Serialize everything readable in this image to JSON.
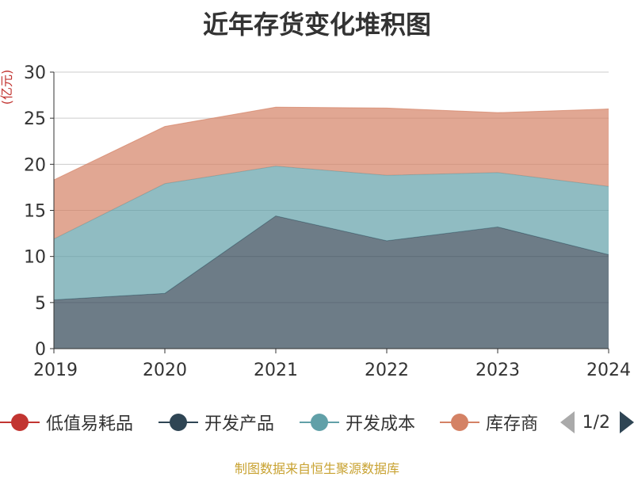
{
  "chart_data": {
    "type": "area",
    "stacked": true,
    "title": "近年存货变化堆积图",
    "ylabel": "(亿元)",
    "ylim": [
      0,
      30
    ],
    "yticks": [
      0,
      5,
      10,
      15,
      20,
      25,
      30
    ],
    "x": [
      "2019",
      "2020",
      "2021",
      "2022",
      "2023",
      "2024"
    ],
    "grid": true,
    "legend_position": "bottom",
    "series": [
      {
        "name": "低值易耗品",
        "color": "#c23531",
        "values": [
          0,
          0,
          0,
          0,
          0,
          0
        ]
      },
      {
        "name": "开发产品",
        "color": "#2f4554",
        "values": [
          5.3,
          6.0,
          14.4,
          11.7,
          13.2,
          10.2
        ]
      },
      {
        "name": "开发成本",
        "color": "#61a0a8",
        "values": [
          6.6,
          11.9,
          5.4,
          7.1,
          5.9,
          7.4
        ]
      },
      {
        "name": "库存商品",
        "color": "#d48265",
        "values": [
          6.4,
          6.2,
          6.4,
          7.3,
          6.5,
          8.4
        ]
      }
    ]
  },
  "legend": {
    "items": [
      "低值易耗品",
      "开发产品",
      "开发成本",
      "库存商"
    ],
    "page": "1/2"
  },
  "source": "制图数据来自恒生聚源数据库"
}
